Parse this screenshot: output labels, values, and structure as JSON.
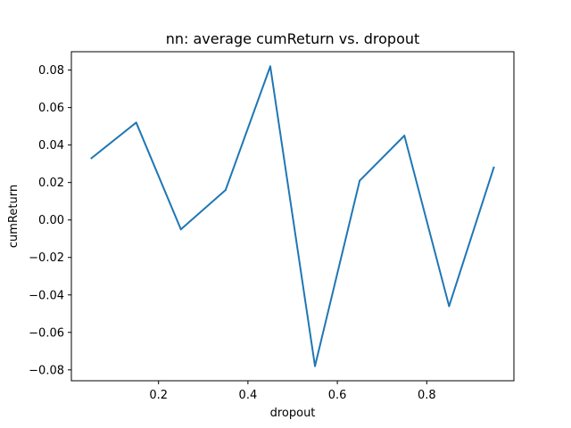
{
  "chart_data": {
    "type": "line",
    "title": "nn: average cumReturn vs. dropout",
    "xlabel": "dropout",
    "ylabel": "cumReturn",
    "xlim": [
      0.005,
      0.995
    ],
    "ylim": [
      -0.0858,
      0.0898
    ],
    "x_ticks": [
      0.2,
      0.4,
      0.6,
      0.8
    ],
    "x_tick_labels": [
      "0.2",
      "0.4",
      "0.6",
      "0.8"
    ],
    "y_ticks": [
      -0.08,
      -0.06,
      -0.04,
      -0.02,
      0.0,
      0.02,
      0.04,
      0.06,
      0.08
    ],
    "y_tick_labels": [
      "−0.08",
      "−0.06",
      "−0.04",
      "−0.02",
      "0.00",
      "0.02",
      "0.04",
      "0.06",
      "0.08"
    ],
    "grid": false,
    "series": [
      {
        "color": "#1f77b4",
        "x": [
          0.05,
          0.15,
          0.25,
          0.35,
          0.45,
          0.55,
          0.65,
          0.75,
          0.85,
          0.95
        ],
        "y": [
          0.033,
          0.052,
          -0.005,
          0.016,
          0.082,
          -0.078,
          0.021,
          0.045,
          -0.046,
          0.028
        ]
      }
    ]
  }
}
